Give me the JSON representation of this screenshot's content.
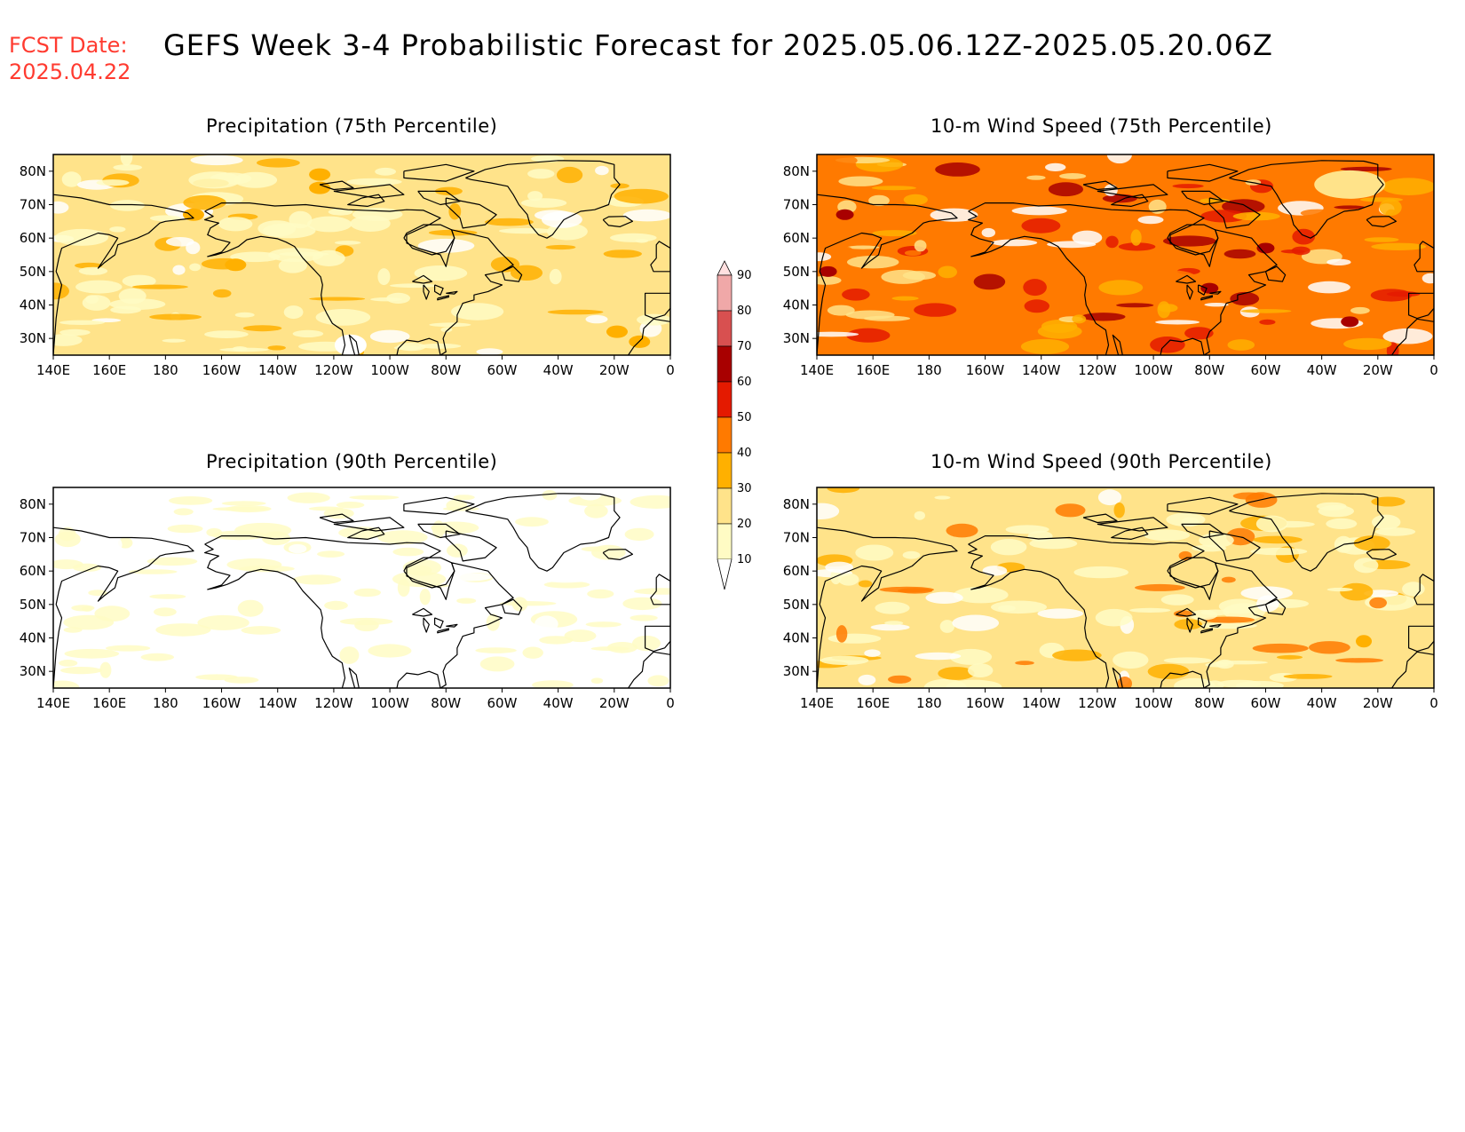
{
  "header": {
    "fcst_label": "FCST Date:",
    "fcst_date": "2025.04.22",
    "title": "GEFS Week 3-4 Probabilistic Forecast for 2025.05.06.12Z-2025.05.20.06Z"
  },
  "colors": {
    "label_red": "#ff3b30",
    "levels": [
      "#fffbc4",
      "#ffe38a",
      "#ffb000",
      "#ff7a00",
      "#e41a00",
      "#a80000",
      "#d85050",
      "#f0a8a8",
      "#ffe0e0"
    ]
  },
  "colorbar": {
    "ticks": [
      "10",
      "20",
      "30",
      "40",
      "50",
      "60",
      "70",
      "80",
      "90"
    ]
  },
  "axes": {
    "lat_labels": [
      "80N",
      "70N",
      "60N",
      "50N",
      "40N",
      "30N"
    ],
    "lon_labels": [
      "140E",
      "160E",
      "180",
      "160W",
      "140W",
      "120W",
      "100W",
      "80W",
      "60W",
      "40W",
      "20W",
      "0"
    ]
  },
  "panels": [
    {
      "id": "precip75",
      "title": "Precipitation (75th Percentile)",
      "dominant": "20-30",
      "field": "precipitation",
      "percentile": "75th"
    },
    {
      "id": "wind75",
      "title": "10-m Wind Speed (75th Percentile)",
      "dominant": "40-50",
      "field": "wind",
      "percentile": "75th"
    },
    {
      "id": "precip90",
      "title": "Precipitation (90th Percentile)",
      "dominant": "10-20",
      "field": "precipitation",
      "percentile": "90th"
    },
    {
      "id": "wind90",
      "title": "10-m Wind Speed (90th Percentile)",
      "dominant": "20-30",
      "field": "wind",
      "percentile": "90th"
    }
  ]
}
